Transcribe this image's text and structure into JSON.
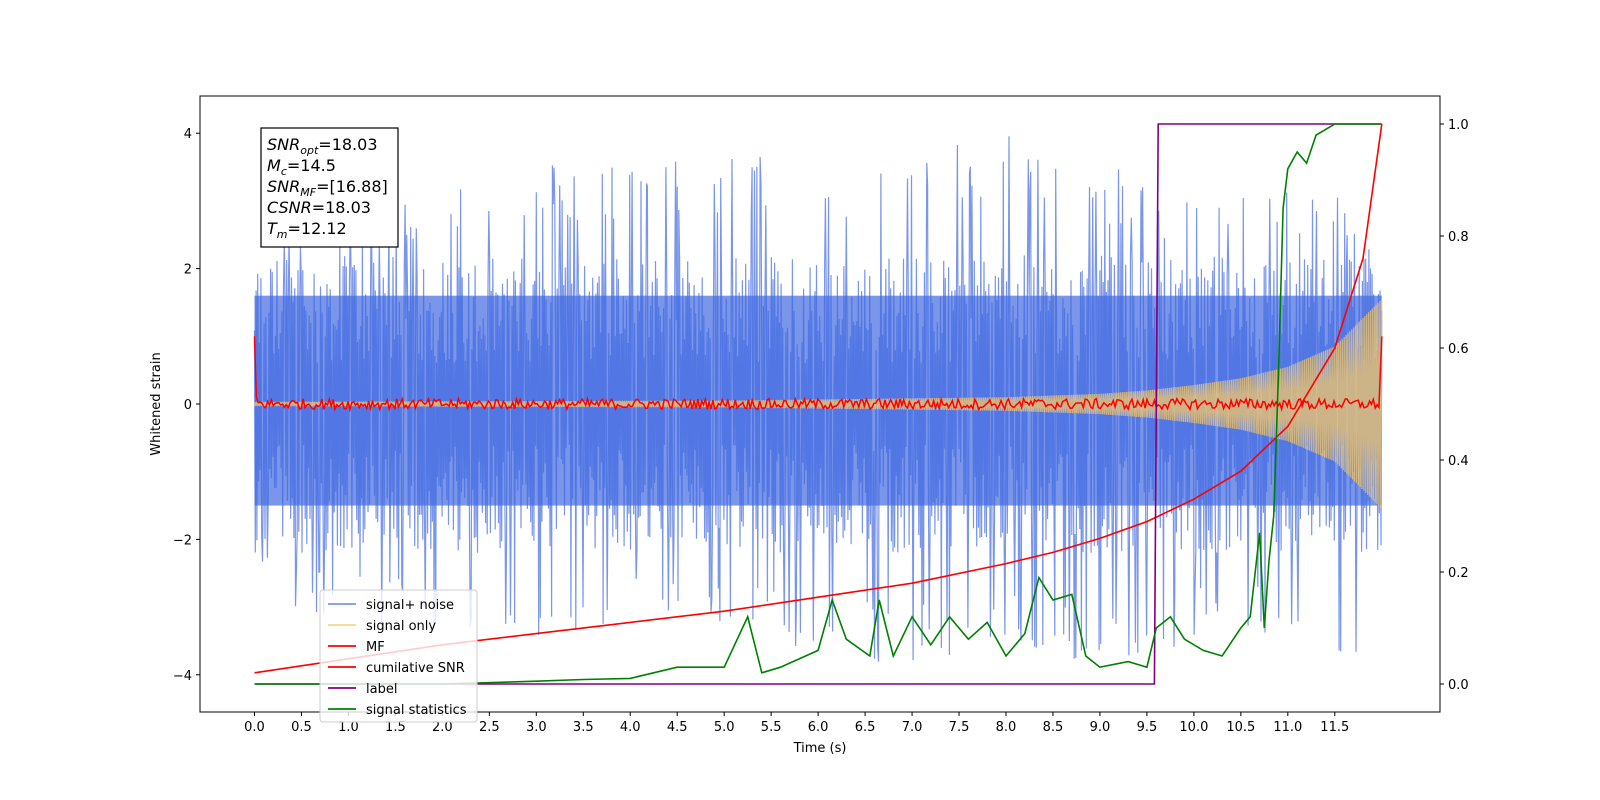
{
  "chart_data": {
    "type": "line",
    "xlabel": "Time (s)",
    "ylabel": "Whitened strain",
    "xlim": [
      -0.58,
      12.62
    ],
    "ylim": [
      -4.55,
      4.55
    ],
    "y2lim": [
      -0.05,
      1.05
    ],
    "x_ticks": [
      0.0,
      0.5,
      1.0,
      1.5,
      2.0,
      2.5,
      3.0,
      3.5,
      4.0,
      4.5,
      5.0,
      5.5,
      6.0,
      6.5,
      7.0,
      7.5,
      8.0,
      8.5,
      9.0,
      9.5,
      10.0,
      10.5,
      11.0,
      11.5
    ],
    "x_tick_labels": [
      "0.0",
      "0.5",
      "1.0",
      "1.5",
      "2.0",
      "2.5",
      "3.0",
      "3.5",
      "4.0",
      "4.5",
      "5.0",
      "5.5",
      "6.0",
      "6.5",
      "7.0",
      "7.5",
      "8.0",
      "8.5",
      "9.0",
      "9.5",
      "10.0",
      "10.5",
      "11.0",
      "11.5"
    ],
    "y_ticks": [
      4,
      2,
      0,
      -2,
      -4
    ],
    "y_tick_labels": [
      "4",
      "2",
      "0",
      "−2",
      "−4"
    ],
    "y2_ticks": [
      1.0,
      0.8,
      0.6,
      0.4,
      0.2,
      0.0
    ],
    "y2_tick_labels": [
      "1.0",
      "0.8",
      "0.6",
      "0.4",
      "0.2",
      "0.0"
    ],
    "grid": false,
    "legend_position": "lower-left",
    "annotation": {
      "snr_opt": "=18.03",
      "mc": "=14.5",
      "snr_mf": "=[16.88]",
      "csnr": "=18.03",
      "tm": "=12.12"
    },
    "series": [
      {
        "name": "signal+ noise",
        "axis": "left",
        "color": "#4169e1",
        "alpha": 0.7,
        "description_kind": "noise_band",
        "upper_envelope": [
          [
            0.0,
            2.6
          ],
          [
            1.0,
            3.0
          ],
          [
            2.0,
            3.3
          ],
          [
            3.0,
            3.6
          ],
          [
            4.0,
            3.6
          ],
          [
            5.0,
            3.7
          ],
          [
            6.0,
            3.7
          ],
          [
            7.0,
            3.6
          ],
          [
            8.0,
            4.1
          ],
          [
            9.0,
            3.6
          ],
          [
            10.0,
            3.1
          ],
          [
            11.0,
            3.2
          ],
          [
            11.5,
            3.3
          ],
          [
            12.0,
            2.4
          ]
        ],
        "lower_envelope": [
          [
            0.0,
            -2.6
          ],
          [
            0.5,
            -3.1
          ],
          [
            1.0,
            -3.3
          ],
          [
            2.0,
            -3.4
          ],
          [
            3.0,
            -3.6
          ],
          [
            4.0,
            -3.4
          ],
          [
            5.0,
            -3.5
          ],
          [
            6.0,
            -3.8
          ],
          [
            7.0,
            -4.0
          ],
          [
            8.0,
            -3.6
          ],
          [
            9.0,
            -4.0
          ],
          [
            10.0,
            -3.5
          ],
          [
            11.0,
            -3.5
          ],
          [
            12.0,
            -3.9
          ]
        ],
        "core_band": [
          -1.5,
          1.6
        ]
      },
      {
        "name": "signal only",
        "axis": "left",
        "color": "#f5c86a",
        "alpha": 0.75,
        "description_kind": "chirp_envelope",
        "amplitude": [
          [
            0.0,
            0.03
          ],
          [
            5.0,
            0.05
          ],
          [
            8.0,
            0.1
          ],
          [
            9.0,
            0.15
          ],
          [
            9.5,
            0.2
          ],
          [
            10.0,
            0.28
          ],
          [
            10.5,
            0.38
          ],
          [
            11.0,
            0.55
          ],
          [
            11.5,
            0.85
          ],
          [
            12.0,
            1.55
          ]
        ]
      },
      {
        "name": "MF",
        "axis": "left",
        "color": "#ff0000",
        "description_kind": "noisy_flat",
        "points": [
          [
            0.0,
            1.0
          ],
          [
            0.02,
            0.1
          ],
          [
            0.5,
            0.02
          ],
          [
            1.0,
            0.0
          ],
          [
            2.0,
            0.0
          ],
          [
            3.0,
            0.0
          ],
          [
            4.0,
            0.0
          ],
          [
            5.0,
            0.0
          ],
          [
            6.0,
            0.0
          ],
          [
            7.0,
            0.0
          ],
          [
            8.0,
            0.0
          ],
          [
            9.0,
            0.0
          ],
          [
            10.0,
            0.0
          ],
          [
            11.0,
            0.0
          ],
          [
            11.98,
            0.0
          ],
          [
            12.0,
            1.0
          ]
        ]
      },
      {
        "name": "cumilative SNR",
        "axis": "right",
        "color": "#ff0000",
        "x": [
          0.0,
          1.0,
          2.0,
          3.0,
          4.0,
          5.0,
          6.0,
          7.0,
          8.0,
          8.5,
          9.0,
          9.5,
          10.0,
          10.5,
          11.0,
          11.5,
          11.8,
          12.0
        ],
        "values": [
          0.02,
          0.045,
          0.07,
          0.09,
          0.11,
          0.13,
          0.155,
          0.18,
          0.215,
          0.235,
          0.26,
          0.29,
          0.33,
          0.38,
          0.46,
          0.6,
          0.76,
          1.0
        ]
      },
      {
        "name": "label",
        "axis": "right",
        "color": "#800080",
        "x": [
          0.0,
          9.58,
          9.62,
          11.99
        ],
        "values": [
          0.0,
          0.0,
          1.0,
          1.0
        ]
      },
      {
        "name": "signal statistics",
        "axis": "right",
        "color": "#008000",
        "x": [
          0.0,
          1.0,
          2.0,
          3.0,
          3.5,
          4.0,
          4.5,
          5.0,
          5.25,
          5.4,
          5.6,
          6.0,
          6.15,
          6.3,
          6.55,
          6.65,
          6.8,
          7.0,
          7.2,
          7.4,
          7.6,
          7.8,
          8.0,
          8.2,
          8.35,
          8.5,
          8.7,
          8.85,
          9.0,
          9.3,
          9.5,
          9.6,
          9.75,
          9.9,
          10.1,
          10.3,
          10.5,
          10.6,
          10.7,
          10.75,
          10.8,
          10.85,
          10.9,
          10.95,
          11.0,
          11.1,
          11.2,
          11.3,
          11.5,
          12.0
        ],
        "values": [
          0.0,
          0.0,
          0.0,
          0.005,
          0.008,
          0.01,
          0.03,
          0.03,
          0.12,
          0.02,
          0.03,
          0.06,
          0.15,
          0.08,
          0.05,
          0.15,
          0.05,
          0.12,
          0.07,
          0.12,
          0.08,
          0.11,
          0.05,
          0.09,
          0.19,
          0.15,
          0.16,
          0.05,
          0.03,
          0.04,
          0.03,
          0.1,
          0.12,
          0.08,
          0.06,
          0.05,
          0.1,
          0.12,
          0.27,
          0.1,
          0.22,
          0.3,
          0.55,
          0.85,
          0.92,
          0.95,
          0.93,
          0.98,
          1.0,
          1.0
        ]
      }
    ]
  }
}
